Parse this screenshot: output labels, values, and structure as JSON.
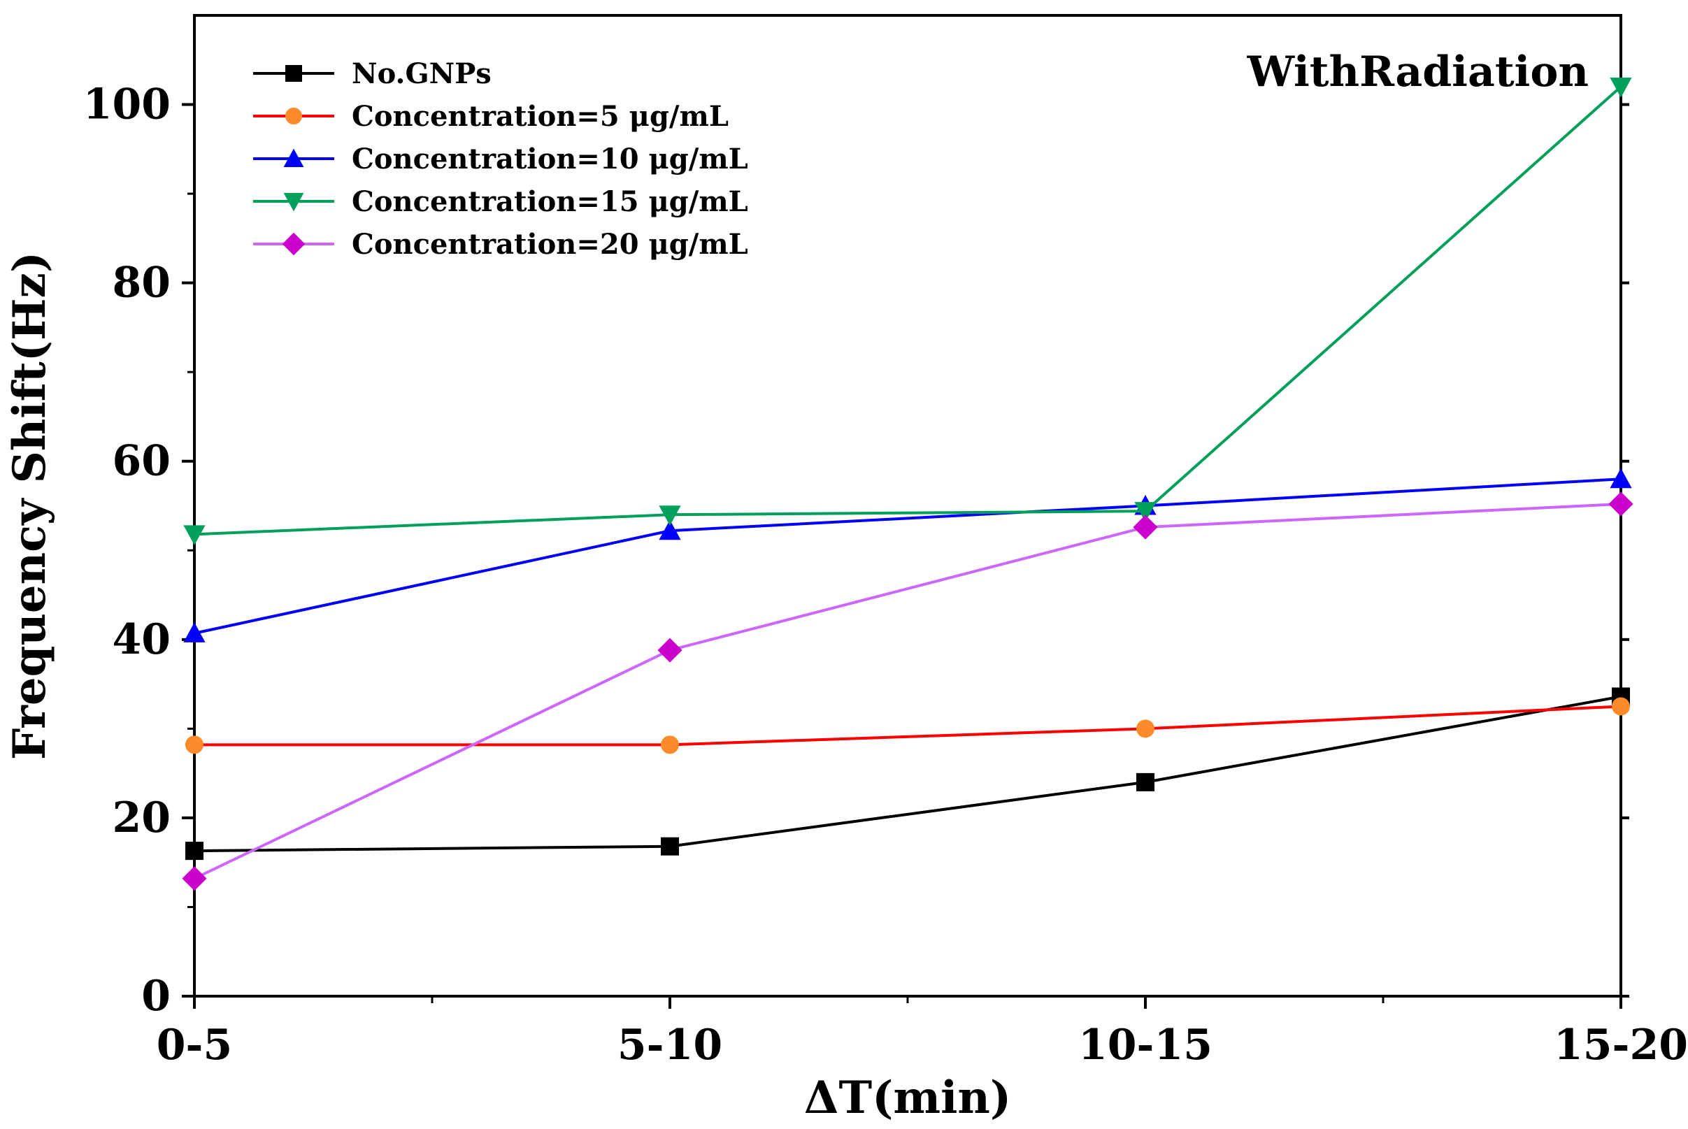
{
  "chart_data": {
    "type": "line",
    "title": "",
    "annotation": "WithRadiation",
    "xlabel": "ΔT(min)",
    "ylabel": "Frequency Shift(Hz)",
    "categories": [
      "0-5",
      "5-10",
      "10-15",
      "15-20"
    ],
    "ylim": [
      0,
      110
    ],
    "yticks": [
      0,
      20,
      40,
      60,
      80,
      100
    ],
    "ytick_labels": [
      "0",
      "20",
      "40",
      "60",
      "80",
      "100"
    ],
    "grid": false,
    "legend_position": "top-left",
    "series": [
      {
        "name": "No.GNPs",
        "color": "#000000",
        "marker": "square",
        "marker_color": "#000000",
        "values": [
          16.3,
          16.8,
          24.0,
          33.6
        ]
      },
      {
        "name": "Concentration=5 μg/mL",
        "color": "#ff0000",
        "marker": "circle",
        "marker_color": "#ff8a2a",
        "values": [
          28.2,
          28.2,
          30.0,
          32.5
        ]
      },
      {
        "name": "Concentration=10 μg/mL",
        "color": "#0000ff",
        "marker": "triangle-up",
        "marker_color": "#0000ff",
        "values": [
          40.7,
          52.2,
          55.0,
          58.0
        ]
      },
      {
        "name": "Concentration=15 μg/mL",
        "color": "#00a05a",
        "marker": "triangle-down",
        "marker_color": "#00a05a",
        "values": [
          51.8,
          54.0,
          54.4,
          102.0
        ]
      },
      {
        "name": "Concentration=20 μg/mL",
        "color": "#cc66ff",
        "marker": "diamond",
        "marker_color": "#cc00cc",
        "values": [
          13.2,
          38.8,
          52.6,
          55.2
        ]
      }
    ]
  }
}
